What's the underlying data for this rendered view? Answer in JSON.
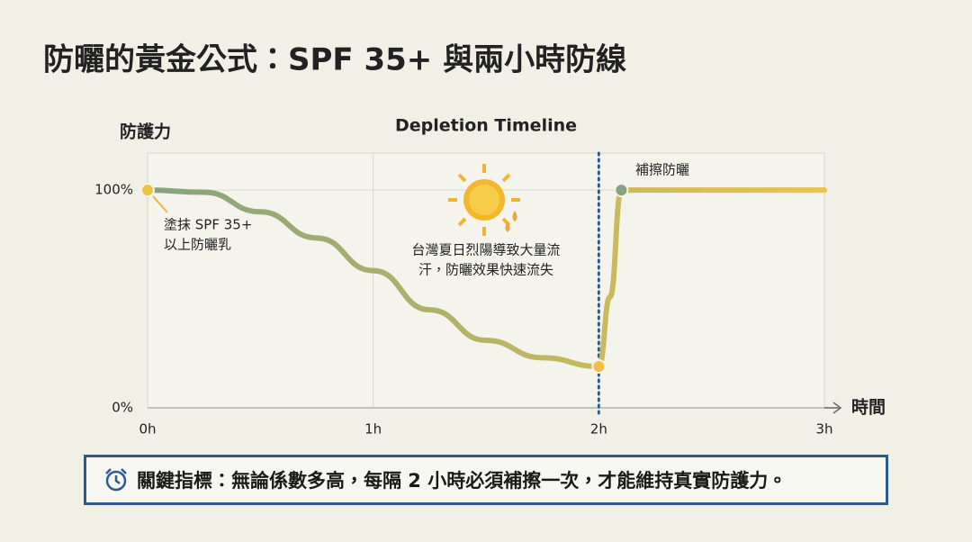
{
  "title": "防曬的黃金公式：SPF 35+ 與兩小時防線",
  "chart_data": {
    "type": "line",
    "title": "Depletion Timeline",
    "y_label": "防護力",
    "x_label": "時間",
    "x": [
      0,
      0.25,
      0.5,
      0.75,
      1,
      1.25,
      1.5,
      1.75,
      2,
      2.05,
      2.1,
      2.5,
      3
    ],
    "values": [
      100,
      99,
      90,
      78,
      63,
      45,
      31,
      23,
      19,
      51,
      100,
      100,
      100
    ],
    "colors": [
      "#86a37e",
      "#e9c54e"
    ],
    "marker_color": "#f0c040",
    "xlim": [
      0,
      3
    ],
    "xticks": [
      {
        "value": 0,
        "label": "0h"
      },
      {
        "value": 1,
        "label": "1h"
      },
      {
        "value": 2,
        "label": "2h"
      },
      {
        "value": 3,
        "label": "3h"
      }
    ],
    "ylim": [
      0,
      117
    ],
    "yticks": [
      {
        "value": 0,
        "label": "0%"
      },
      {
        "value": 100,
        "label": "100%"
      }
    ],
    "grid": true,
    "annotations": [
      {
        "lines": [
          "塗抹 SPF 35+",
          "以上防曬乳"
        ]
      },
      {
        "lines": [
          "台灣夏日烈陽導致大量流",
          "汗，防曬效果快速流失"
        ]
      },
      {
        "lines": [
          "補擦防曬"
        ]
      }
    ]
  },
  "callout": "關鍵指標：無論係數多高，每隔 2 小時必須補擦一次，才能維持真實防護力。"
}
